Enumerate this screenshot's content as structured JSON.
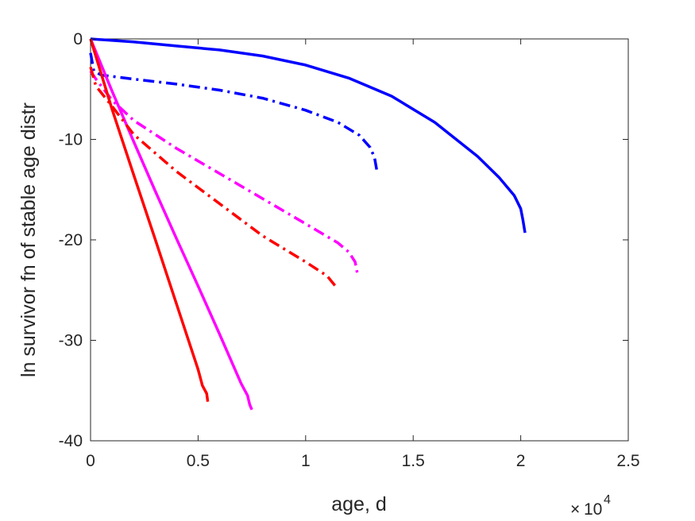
{
  "chart_data": {
    "type": "line",
    "title": "",
    "xlabel": "age, d",
    "ylabel": "ln survivor fn of stable age distr",
    "x_multiplier_base": "10",
    "x_multiplier_exponent": "4",
    "xlim": [
      0,
      25000
    ],
    "ylim": [
      -40,
      0
    ],
    "x_ticks": [
      0,
      5000,
      10000,
      15000,
      20000,
      25000
    ],
    "x_tick_labels": [
      "0",
      "0.5",
      "1",
      "1.5",
      "2",
      "2.5"
    ],
    "y_ticks": [
      0,
      -10,
      -20,
      -30,
      -40
    ],
    "y_tick_labels": [
      "0",
      "-10",
      "-20",
      "-30",
      "-40"
    ],
    "grid": false,
    "legend": "none",
    "series": [
      {
        "color": "#0000ff",
        "style": "solid",
        "points": [
          [
            0,
            0
          ],
          [
            2000,
            -0.3
          ],
          [
            4000,
            -0.7
          ],
          [
            6000,
            -1.1
          ],
          [
            8000,
            -1.7
          ],
          [
            10000,
            -2.6
          ],
          [
            12000,
            -3.9
          ],
          [
            14000,
            -5.7
          ],
          [
            16000,
            -8.3
          ],
          [
            18000,
            -11.7
          ],
          [
            19000,
            -13.8
          ],
          [
            19700,
            -15.6
          ],
          [
            20000,
            -16.9
          ],
          [
            20100,
            -18.0
          ],
          [
            20200,
            -19.3
          ]
        ]
      },
      {
        "color": "#0000ff",
        "style": "dashdot",
        "points": [
          [
            0,
            -1.4
          ],
          [
            150,
            -3.2
          ],
          [
            500,
            -3.6
          ],
          [
            2000,
            -4.0
          ],
          [
            4000,
            -4.5
          ],
          [
            6000,
            -5.1
          ],
          [
            8000,
            -5.9
          ],
          [
            10000,
            -7.1
          ],
          [
            11500,
            -8.3
          ],
          [
            12500,
            -9.6
          ],
          [
            13000,
            -10.8
          ],
          [
            13200,
            -11.8
          ],
          [
            13300,
            -13.0
          ]
        ]
      },
      {
        "color": "#ff00ff",
        "style": "solid",
        "points": [
          [
            0,
            0
          ],
          [
            1000,
            -5.2
          ],
          [
            2000,
            -10.2
          ],
          [
            3000,
            -15.1
          ],
          [
            4000,
            -19.9
          ],
          [
            5000,
            -24.6
          ],
          [
            6000,
            -29.4
          ],
          [
            7000,
            -34.3
          ],
          [
            7300,
            -35.5
          ],
          [
            7400,
            -36.4
          ],
          [
            7500,
            -36.9
          ]
        ]
      },
      {
        "color": "#ff00ff",
        "style": "dashdot",
        "points": [
          [
            0,
            -3.2
          ],
          [
            250,
            -4.0
          ],
          [
            1000,
            -6.1
          ],
          [
            2000,
            -8.1
          ],
          [
            4000,
            -10.9
          ],
          [
            6000,
            -13.4
          ],
          [
            8000,
            -15.9
          ],
          [
            10000,
            -18.4
          ],
          [
            11500,
            -20.3
          ],
          [
            12000,
            -21.2
          ],
          [
            12300,
            -22.2
          ],
          [
            12400,
            -23.3
          ]
        ]
      },
      {
        "color": "#ff0000",
        "style": "solid",
        "points": [
          [
            0,
            0
          ],
          [
            1000,
            -7.0
          ],
          [
            2000,
            -13.5
          ],
          [
            3000,
            -19.9
          ],
          [
            4000,
            -26.4
          ],
          [
            5000,
            -32.9
          ],
          [
            5200,
            -34.5
          ],
          [
            5400,
            -35.3
          ],
          [
            5450,
            -36.1
          ]
        ]
      },
      {
        "color": "#ff0000",
        "style": "dashdot",
        "points": [
          [
            0,
            -2.8
          ],
          [
            250,
            -4.7
          ],
          [
            1000,
            -6.7
          ],
          [
            2000,
            -9.5
          ],
          [
            4000,
            -13.2
          ],
          [
            6000,
            -16.4
          ],
          [
            8000,
            -19.6
          ],
          [
            10000,
            -22.2
          ],
          [
            11000,
            -23.6
          ],
          [
            11500,
            -24.9
          ]
        ]
      }
    ]
  }
}
